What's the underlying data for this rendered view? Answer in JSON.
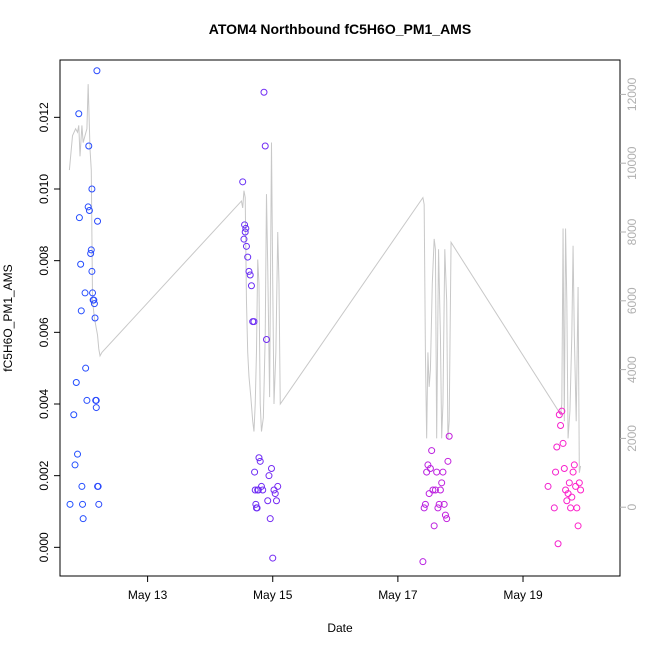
{
  "chart_data": {
    "type": "scatter",
    "title": "ATOM4 Northbound fC5H6O_PM1_AMS",
    "xlabel": "Date",
    "ylabel": "fC5H6O_PM1_AMS",
    "x_units": "days (0 = May 12 00:00)",
    "xlim": [
      11.6,
      20.55
    ],
    "ylim": [
      -0.0008,
      0.0136
    ],
    "y2lim": [
      -2000,
      13000
    ],
    "x_ticks": [
      {
        "value": 13,
        "label": "May 13"
      },
      {
        "value": 15,
        "label": "May 15"
      },
      {
        "value": 17,
        "label": "May 17"
      },
      {
        "value": 19,
        "label": "May 19"
      }
    ],
    "y_ticks": [
      {
        "value": 0,
        "label": "0.000"
      },
      {
        "value": 0.002,
        "label": "0.002"
      },
      {
        "value": 0.004,
        "label": "0.004"
      },
      {
        "value": 0.006,
        "label": "0.006"
      },
      {
        "value": 0.008,
        "label": "0.008"
      },
      {
        "value": 0.01,
        "label": "0.010"
      },
      {
        "value": 0.012,
        "label": "0.012"
      }
    ],
    "y2_ticks": [
      {
        "value": 0,
        "label": "0"
      },
      {
        "value": 2000,
        "label": "2000"
      },
      {
        "value": 4000,
        "label": "4000"
      },
      {
        "value": 6000,
        "label": "6000"
      },
      {
        "value": 8000,
        "label": "8000"
      },
      {
        "value": 10000,
        "label": "10000"
      },
      {
        "value": 12000,
        "label": "12000"
      }
    ],
    "series": [
      {
        "name": "fC5H6O_PM1_AMS",
        "kind": "points",
        "color_scale": [
          "#1f4fff",
          "#8a20f0",
          "#ff1fc8"
        ],
        "x": [
          11.76,
          11.82,
          11.84,
          11.86,
          11.88,
          11.9,
          11.91,
          11.93,
          11.94,
          11.95,
          11.96,
          11.97,
          12.0,
          12.01,
          12.03,
          12.05,
          12.06,
          12.07,
          12.09,
          12.1,
          12.11,
          12.11,
          12.12,
          12.13,
          12.14,
          12.15,
          12.16,
          12.17,
          12.18,
          12.18,
          12.19,
          12.2,
          12.2,
          12.21,
          12.22,
          14.52,
          14.54,
          14.55,
          14.56,
          14.57,
          14.58,
          14.6,
          14.62,
          14.64,
          14.66,
          14.68,
          14.7,
          14.71,
          14.72,
          14.73,
          14.74,
          14.75,
          14.76,
          14.77,
          14.78,
          14.8,
          14.82,
          14.84,
          14.86,
          14.88,
          14.9,
          14.92,
          14.94,
          14.96,
          14.98,
          15.0,
          15.02,
          15.04,
          15.06,
          15.08,
          17.4,
          17.42,
          17.44,
          17.46,
          17.48,
          17.5,
          17.52,
          17.54,
          17.56,
          17.58,
          17.6,
          17.62,
          17.64,
          17.66,
          17.68,
          17.7,
          17.72,
          17.74,
          17.76,
          17.78,
          17.8,
          17.82,
          19.4,
          19.5,
          19.52,
          19.54,
          19.56,
          19.58,
          19.6,
          19.62,
          19.64,
          19.66,
          19.68,
          19.7,
          19.72,
          19.74,
          19.76,
          19.78,
          19.8,
          19.82,
          19.84,
          19.86,
          19.88,
          19.9,
          19.92
        ],
        "values": [
          0.0012,
          0.0037,
          0.0023,
          0.0046,
          0.0026,
          0.0121,
          0.0092,
          0.0079,
          0.0066,
          0.0017,
          0.0012,
          0.0008,
          0.0071,
          0.005,
          0.0041,
          0.0095,
          0.0112,
          0.0094,
          0.0082,
          0.0083,
          0.01,
          0.0077,
          0.0071,
          0.0069,
          0.0069,
          0.0068,
          0.0064,
          0.0041,
          0.0039,
          0.0041,
          0.0133,
          0.0091,
          0.0017,
          0.0017,
          0.0012,
          0.0102,
          0.0086,
          0.009,
          0.0088,
          0.0089,
          0.0084,
          0.0081,
          0.0077,
          0.0076,
          0.0073,
          0.0063,
          0.0063,
          0.0021,
          0.0016,
          0.0012,
          0.0011,
          0.0011,
          0.0016,
          0.0016,
          0.0025,
          0.0024,
          0.0017,
          0.0016,
          0.0127,
          0.0112,
          0.0058,
          0.0013,
          0.002,
          0.0008,
          0.0022,
          -0.0003,
          0.0016,
          0.0015,
          0.0013,
          0.0017,
          -0.0004,
          0.0011,
          0.0012,
          0.0021,
          0.0023,
          0.0015,
          0.0022,
          0.0027,
          0.0016,
          0.0006,
          0.0016,
          0.0021,
          0.0011,
          0.0012,
          0.0016,
          0.0018,
          0.0021,
          0.0012,
          0.0009,
          0.0008,
          0.0024,
          0.0031,
          0.0017,
          0.0011,
          0.0021,
          0.0028,
          0.0001,
          0.0037,
          0.0034,
          0.0038,
          0.0029,
          0.0022,
          0.0016,
          0.0013,
          0.0015,
          0.0018,
          0.0011,
          0.0014,
          0.0021,
          0.0023,
          0.0017,
          0.0011,
          0.0006,
          0.0018,
          0.0016
        ]
      },
      {
        "name": "right-axis series",
        "kind": "line",
        "color": "#c8c8c8",
        "x": [
          11.75,
          11.8,
          11.85,
          11.88,
          11.9,
          11.92,
          11.95,
          11.97,
          12.0,
          12.03,
          12.05,
          12.08,
          12.1,
          12.12,
          12.15,
          12.18,
          12.2,
          12.22,
          12.24,
          12.27,
          14.5,
          14.52,
          14.54,
          14.56,
          14.58,
          14.6,
          14.62,
          14.65,
          14.68,
          14.7,
          14.72,
          14.74,
          14.76,
          14.78,
          14.8,
          14.82,
          14.85,
          14.88,
          14.9,
          14.92,
          14.95,
          14.98,
          15.0,
          15.02,
          15.05,
          15.08,
          15.1,
          15.12,
          17.4,
          17.42,
          17.44,
          17.46,
          17.48,
          17.5,
          17.52,
          17.55,
          17.58,
          17.6,
          17.62,
          17.65,
          17.68,
          17.7,
          17.72,
          17.75,
          17.78,
          17.8,
          17.82,
          17.85,
          19.6,
          19.62,
          19.64,
          19.66,
          19.68,
          19.7,
          19.72,
          19.75,
          19.78,
          19.8,
          19.82,
          19.85,
          19.88,
          19.9,
          19.92
        ],
        "values": [
          9800,
          10800,
          11000,
          10900,
          11100,
          10200,
          11100,
          10600,
          10800,
          11000,
          12300,
          10400,
          9800,
          6000,
          5500,
          5200,
          5000,
          4600,
          4400,
          4500,
          8900,
          8700,
          9200,
          9000,
          6000,
          4500,
          3800,
          3200,
          2500,
          2200,
          3000,
          4500,
          7200,
          6500,
          3000,
          2200,
          2600,
          5000,
          9100,
          7000,
          3200,
          10600,
          6500,
          3000,
          4500,
          8000,
          6500,
          3000,
          9000,
          8800,
          4500,
          2000,
          4500,
          3500,
          4000,
          6500,
          7800,
          7500,
          2000,
          7500,
          5000,
          2000,
          3000,
          7500,
          6000,
          2000,
          2500,
          7700,
          2700,
          3000,
          8100,
          2500,
          8100,
          6000,
          2000,
          2800,
          5000,
          7600,
          5000,
          2500,
          6400,
          1000,
          1200
        ]
      }
    ]
  }
}
